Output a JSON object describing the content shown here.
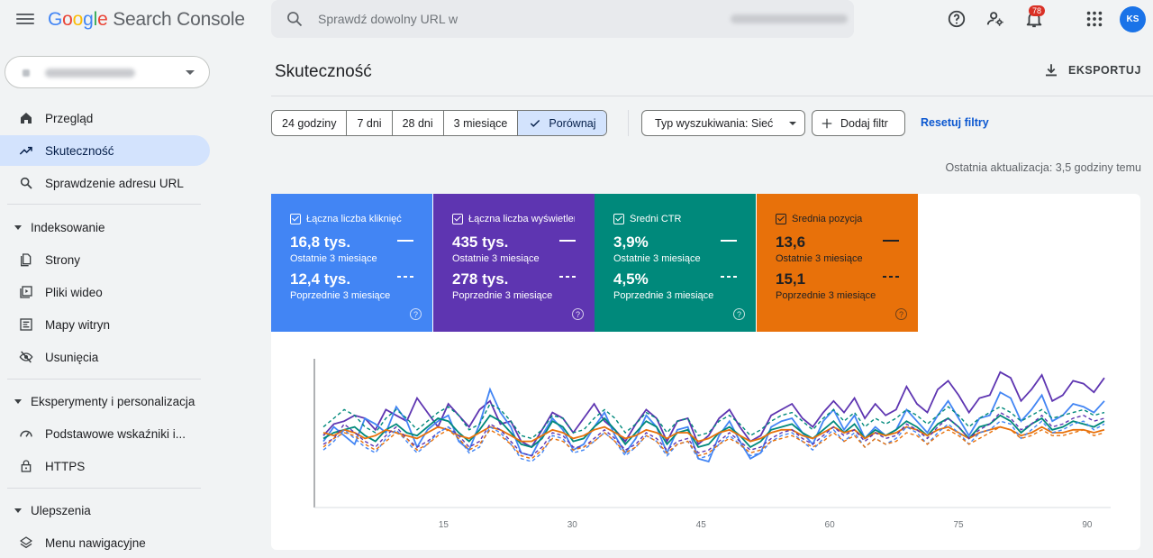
{
  "app": {
    "logo_google": "Google",
    "logo_product": "Search Console"
  },
  "search": {
    "placeholder": "Sprawdź dowolny URL w"
  },
  "notifications": {
    "count": "78"
  },
  "avatar": {
    "initials": "KS"
  },
  "sidebar": {
    "items": [
      {
        "label": "Przegląd",
        "icon": "home-icon"
      },
      {
        "label": "Skuteczność",
        "icon": "trending-up-icon",
        "active": true
      },
      {
        "label": "Sprawdzenie adresu URL",
        "icon": "search-icon"
      }
    ],
    "sections": [
      {
        "title": "Indeksowanie",
        "items": [
          {
            "label": "Strony",
            "icon": "pages-icon"
          },
          {
            "label": "Pliki wideo",
            "icon": "video-icon"
          },
          {
            "label": "Mapy witryn",
            "icon": "sitemap-icon"
          },
          {
            "label": "Usunięcia",
            "icon": "visibility-off-icon"
          }
        ]
      },
      {
        "title": "Eksperymenty i personalizacja",
        "items": [
          {
            "label": "Podstawowe wskaźniki i...",
            "icon": "speed-icon"
          },
          {
            "label": "HTTPS",
            "icon": "lock-icon"
          }
        ]
      },
      {
        "title": "Ulepszenia",
        "items": [
          {
            "label": "Menu nawigacyjne",
            "icon": "layers-icon"
          }
        ]
      }
    ]
  },
  "main": {
    "title": "Skuteczność",
    "export_label": "EKSPORTUJ",
    "date_ranges": [
      "24 godziny",
      "7 dni",
      "28 dni",
      "3 miesiące"
    ],
    "compare_label": "Porównaj",
    "search_type_filter": "Typ wyszukiwania: Sieć",
    "add_filter_label": "Dodaj filtr",
    "reset_filters_label": "Resetuj filtry",
    "last_update": "Ostatnia aktualizacja: 3,5 godziny temu"
  },
  "metrics": [
    {
      "title": "Łączna liczba kliknięć",
      "current": "16,8 tys.",
      "current_label": "Ostatnie 3 miesiące",
      "previous": "12,4 tys.",
      "previous_label": "Poprzednie 3 miesiące",
      "color": "#4285f4"
    },
    {
      "title": "Łączna liczba wyświetleń",
      "current": "435 tys.",
      "current_label": "Ostatnie 3 miesiące",
      "previous": "278 tys.",
      "previous_label": "Poprzednie 3 miesiące",
      "color": "#5e35b1"
    },
    {
      "title": "Średni CTR",
      "current": "3,9%",
      "current_label": "Ostatnie 3 miesiące",
      "previous": "4,5%",
      "previous_label": "Poprzednie 3 miesiące",
      "color": "#00897b"
    },
    {
      "title": "Średnia pozycja",
      "current": "13,6",
      "current_label": "Ostatnie 3 miesiące",
      "previous": "15,1",
      "previous_label": "Poprzednie 3 miesiące",
      "color": "#e8710a"
    }
  ],
  "chart_data": {
    "type": "line",
    "x_ticks": [
      15,
      30,
      45,
      60,
      75,
      90
    ],
    "xlim": [
      1,
      92
    ],
    "series": [
      {
        "color": "#5e35b1",
        "dashed": false,
        "values": [
          48,
          56,
          58,
          62,
          60,
          52,
          66,
          62,
          58,
          74,
          64,
          54,
          70,
          62,
          54,
          66,
          72,
          56,
          58,
          44,
          40,
          52,
          64,
          60,
          50,
          60,
          70,
          58,
          52,
          44,
          56,
          66,
          60,
          44,
          58,
          60,
          42,
          48,
          60,
          66,
          54,
          44,
          48,
          62,
          66,
          70,
          60,
          54,
          64,
          72,
          64,
          74,
          60,
          70,
          62,
          66,
          82,
          70,
          64,
          80,
          86,
          76,
          64,
          74,
          76,
          92,
          88,
          72,
          80,
          90,
          72,
          76,
          86,
          84,
          78,
          88
        ]
      },
      {
        "color": "#4285f4",
        "dashed": false,
        "values": [
          44,
          54,
          48,
          42,
          60,
          56,
          50,
          68,
          58,
          40,
          52,
          58,
          62,
          44,
          38,
          56,
          80,
          64,
          54,
          36,
          34,
          48,
          60,
          52,
          38,
          42,
          54,
          64,
          48,
          36,
          46,
          62,
          54,
          36,
          52,
          54,
          32,
          30,
          48,
          58,
          44,
          32,
          36,
          54,
          58,
          60,
          50,
          42,
          58,
          66,
          52,
          62,
          46,
          54,
          48,
          52,
          66,
          58,
          50,
          62,
          72,
          60,
          48,
          60,
          62,
          78,
          74,
          58,
          66,
          76,
          58,
          62,
          70,
          68,
          64,
          72
        ]
      },
      {
        "color": "#00897b",
        "dashed": false,
        "values": [
          46,
          50,
          52,
          54,
          48,
          44,
          52,
          56,
          50,
          48,
          54,
          60,
          58,
          50,
          44,
          52,
          62,
          58,
          50,
          42,
          40,
          46,
          58,
          54,
          44,
          46,
          54,
          60,
          52,
          42,
          50,
          58,
          54,
          42,
          50,
          52,
          40,
          42,
          50,
          54,
          48,
          40,
          44,
          52,
          54,
          56,
          50,
          46,
          52,
          58,
          50,
          56,
          46,
          52,
          48,
          52,
          58,
          54,
          48,
          56,
          60,
          54,
          46,
          54,
          56,
          62,
          58,
          50,
          56,
          60,
          52,
          54,
          58,
          56,
          54,
          58
        ]
      },
      {
        "color": "#e8710a",
        "dashed": false,
        "values": [
          50,
          48,
          52,
          50,
          46,
          48,
          52,
          50,
          48,
          46,
          50,
          54,
          52,
          48,
          46,
          50,
          54,
          52,
          48,
          44,
          44,
          48,
          52,
          50,
          46,
          48,
          52,
          54,
          50,
          46,
          48,
          52,
          50,
          46,
          50,
          50,
          44,
          46,
          50,
          52,
          48,
          44,
          46,
          50,
          52,
          52,
          48,
          46,
          50,
          54,
          50,
          52,
          46,
          50,
          48,
          50,
          54,
          52,
          48,
          52,
          54,
          50,
          46,
          50,
          52,
          54,
          52,
          48,
          50,
          54,
          50,
          50,
          52,
          52,
          50,
          52
        ]
      },
      {
        "color": "#5e35b1",
        "dashed": true,
        "values": [
          42,
          46,
          56,
          50,
          44,
          40,
          48,
          54,
          46,
          40,
          44,
          50,
          54,
          48,
          40,
          44,
          56,
          52,
          44,
          36,
          34,
          40,
          50,
          48,
          40,
          40,
          46,
          52,
          46,
          38,
          42,
          50,
          46,
          38,
          44,
          46,
          36,
          38,
          44,
          50,
          44,
          38,
          40,
          46,
          50,
          52,
          46,
          42,
          48,
          54,
          48,
          52,
          44,
          50,
          46,
          48,
          56,
          52,
          46,
          54,
          60,
          54,
          46,
          52,
          56,
          64,
          60,
          52,
          56,
          62,
          54,
          56,
          60,
          62,
          58,
          60
        ]
      },
      {
        "color": "#4285f4",
        "dashed": true,
        "values": [
          38,
          44,
          52,
          46,
          40,
          36,
          46,
          52,
          44,
          36,
          42,
          50,
          54,
          46,
          36,
          40,
          54,
          50,
          42,
          32,
          30,
          36,
          48,
          46,
          36,
          38,
          44,
          50,
          44,
          34,
          40,
          48,
          44,
          34,
          42,
          44,
          32,
          34,
          42,
          48,
          42,
          34,
          36,
          44,
          48,
          50,
          44,
          38,
          46,
          52,
          44,
          50,
          40,
          46,
          42,
          46,
          54,
          50,
          42,
          50,
          56,
          50,
          42,
          50,
          52,
          58,
          56,
          46,
          52,
          58,
          50,
          52,
          56,
          58,
          52,
          56
        ]
      },
      {
        "color": "#00897b",
        "dashed": true,
        "values": [
          54,
          60,
          66,
          62,
          54,
          50,
          60,
          66,
          60,
          52,
          58,
          64,
          68,
          62,
          52,
          56,
          70,
          66,
          58,
          48,
          46,
          52,
          62,
          60,
          50,
          52,
          60,
          66,
          60,
          50,
          56,
          64,
          60,
          50,
          58,
          60,
          48,
          50,
          58,
          62,
          56,
          48,
          52,
          58,
          62,
          64,
          58,
          52,
          60,
          66,
          58,
          64,
          54,
          60,
          56,
          60,
          66,
          62,
          56,
          62,
          68,
          62,
          54,
          60,
          64,
          68,
          64,
          58,
          62,
          66,
          60,
          62,
          64,
          66,
          62,
          64
        ]
      },
      {
        "color": "#e8710a",
        "dashed": true,
        "values": [
          40,
          46,
          50,
          48,
          42,
          38,
          44,
          50,
          46,
          38,
          42,
          48,
          52,
          46,
          38,
          42,
          52,
          48,
          42,
          34,
          32,
          38,
          46,
          44,
          38,
          40,
          44,
          50,
          44,
          36,
          40,
          48,
          44,
          36,
          42,
          44,
          34,
          36,
          42,
          46,
          42,
          36,
          38,
          44,
          46,
          48,
          44,
          40,
          44,
          50,
          44,
          48,
          40,
          46,
          42,
          44,
          50,
          48,
          42,
          48,
          52,
          48,
          42,
          46,
          50,
          54,
          52,
          46,
          48,
          52,
          48,
          48,
          50,
          52,
          48,
          50
        ]
      }
    ]
  }
}
